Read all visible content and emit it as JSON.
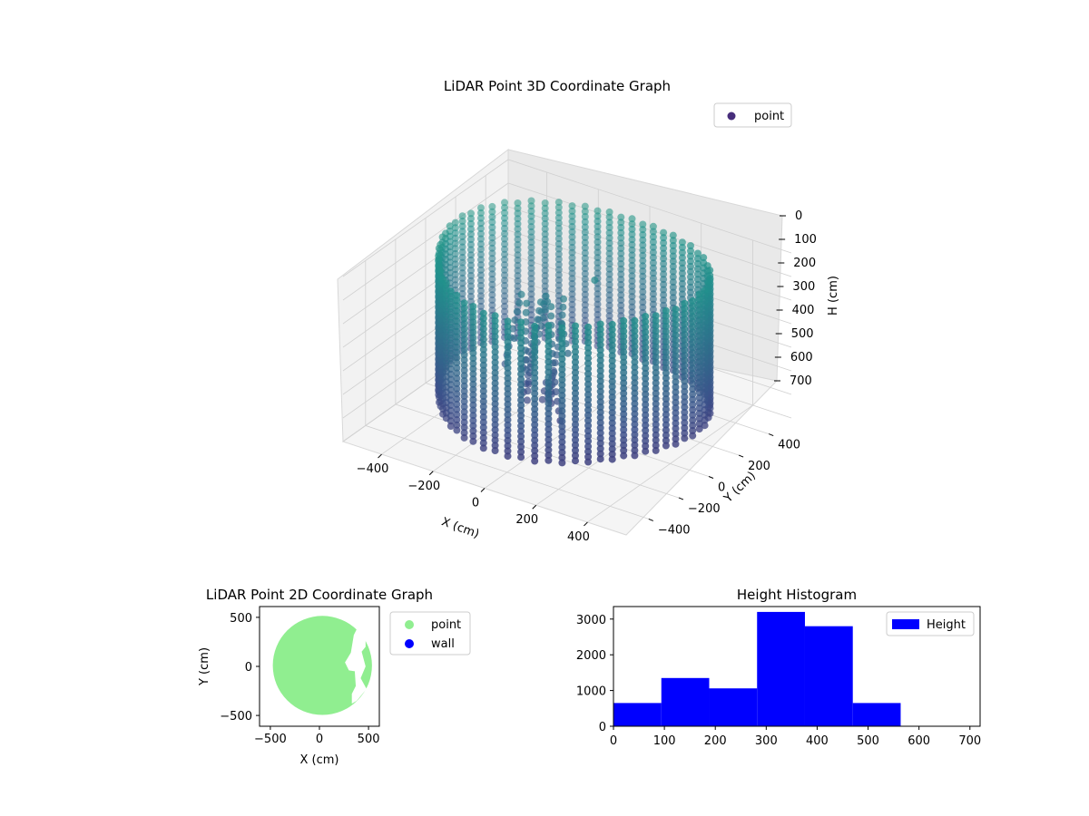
{
  "chart_data": [
    {
      "type": "scatter3d",
      "title": "LiDAR Point 3D Coordinate Graph",
      "xlabel": "X (cm)",
      "ylabel": "Y (cm)",
      "zlabel": "H (cm)",
      "xticks": [
        "−400",
        "−200",
        "0",
        "200",
        "400"
      ],
      "yticks": [
        "−400",
        "−200",
        "0",
        "200",
        "400"
      ],
      "zticks": [
        "0",
        "100",
        "200",
        "300",
        "400",
        "500",
        "600",
        "700"
      ],
      "xlim": [
        -550,
        550
      ],
      "ylim": [
        -550,
        550
      ],
      "zlim": [
        0,
        700
      ],
      "z_inverted": true,
      "grid": true,
      "legend": {
        "placement": "top-right",
        "entries": [
          "point"
        ]
      },
      "series": [
        {
          "name": "point",
          "shape": "cylindrical wall of points",
          "radius": 480,
          "height_range": [
            0,
            580
          ],
          "colormap": [
            "#440154",
            "#3b528b",
            "#21918c",
            "#5ec962"
          ],
          "extra_points": [
            [
              -150,
              0,
              560
            ],
            [
              60,
              80,
              80
            ],
            [
              -130,
              -130,
              300
            ]
          ]
        }
      ],
      "colors": {
        "legend_marker": "#472d7b"
      }
    },
    {
      "type": "scatter",
      "title": "LiDAR Point 2D Coordinate Graph",
      "xlabel": "X (cm)",
      "ylabel": "Y (cm)",
      "xticks": [
        "−500",
        "0",
        "500"
      ],
      "yticks": [
        "−500",
        "0",
        "500"
      ],
      "xlim": [
        -610,
        610
      ],
      "ylim": [
        -610,
        610
      ],
      "legend": {
        "placement": "outside-right",
        "entries": [
          "point",
          "wall"
        ]
      },
      "series": [
        {
          "name": "point",
          "color": "#90ee90",
          "shape": "filled disc",
          "center": [
            30,
            10
          ],
          "radius": 505
        },
        {
          "name": "wall",
          "color": "#0000ff"
        }
      ]
    },
    {
      "type": "bar",
      "title": "Height Histogram",
      "xlabel": "",
      "ylabel": "",
      "xticks": [
        "0",
        "100",
        "200",
        "300",
        "400",
        "500",
        "600",
        "700"
      ],
      "yticks": [
        "0",
        "1000",
        "2000",
        "3000"
      ],
      "xlim": [
        0,
        720
      ],
      "ylim": [
        0,
        3350
      ],
      "legend": {
        "placement": "top-right",
        "entries": [
          "Height"
        ]
      },
      "color": "#0000ff",
      "bins": [
        {
          "x0": 0,
          "x1": 94,
          "count": 650
        },
        {
          "x0": 94,
          "x1": 188,
          "count": 1350
        },
        {
          "x0": 188,
          "x1": 282,
          "count": 1060
        },
        {
          "x0": 282,
          "x1": 376,
          "count": 3200
        },
        {
          "x0": 376,
          "x1": 470,
          "count": 2800
        },
        {
          "x0": 470,
          "x1": 564,
          "count": 650
        },
        {
          "x0": 564,
          "x1": 658,
          "count": 0
        },
        {
          "x0": 658,
          "x1": 720,
          "count": 0
        }
      ]
    }
  ]
}
